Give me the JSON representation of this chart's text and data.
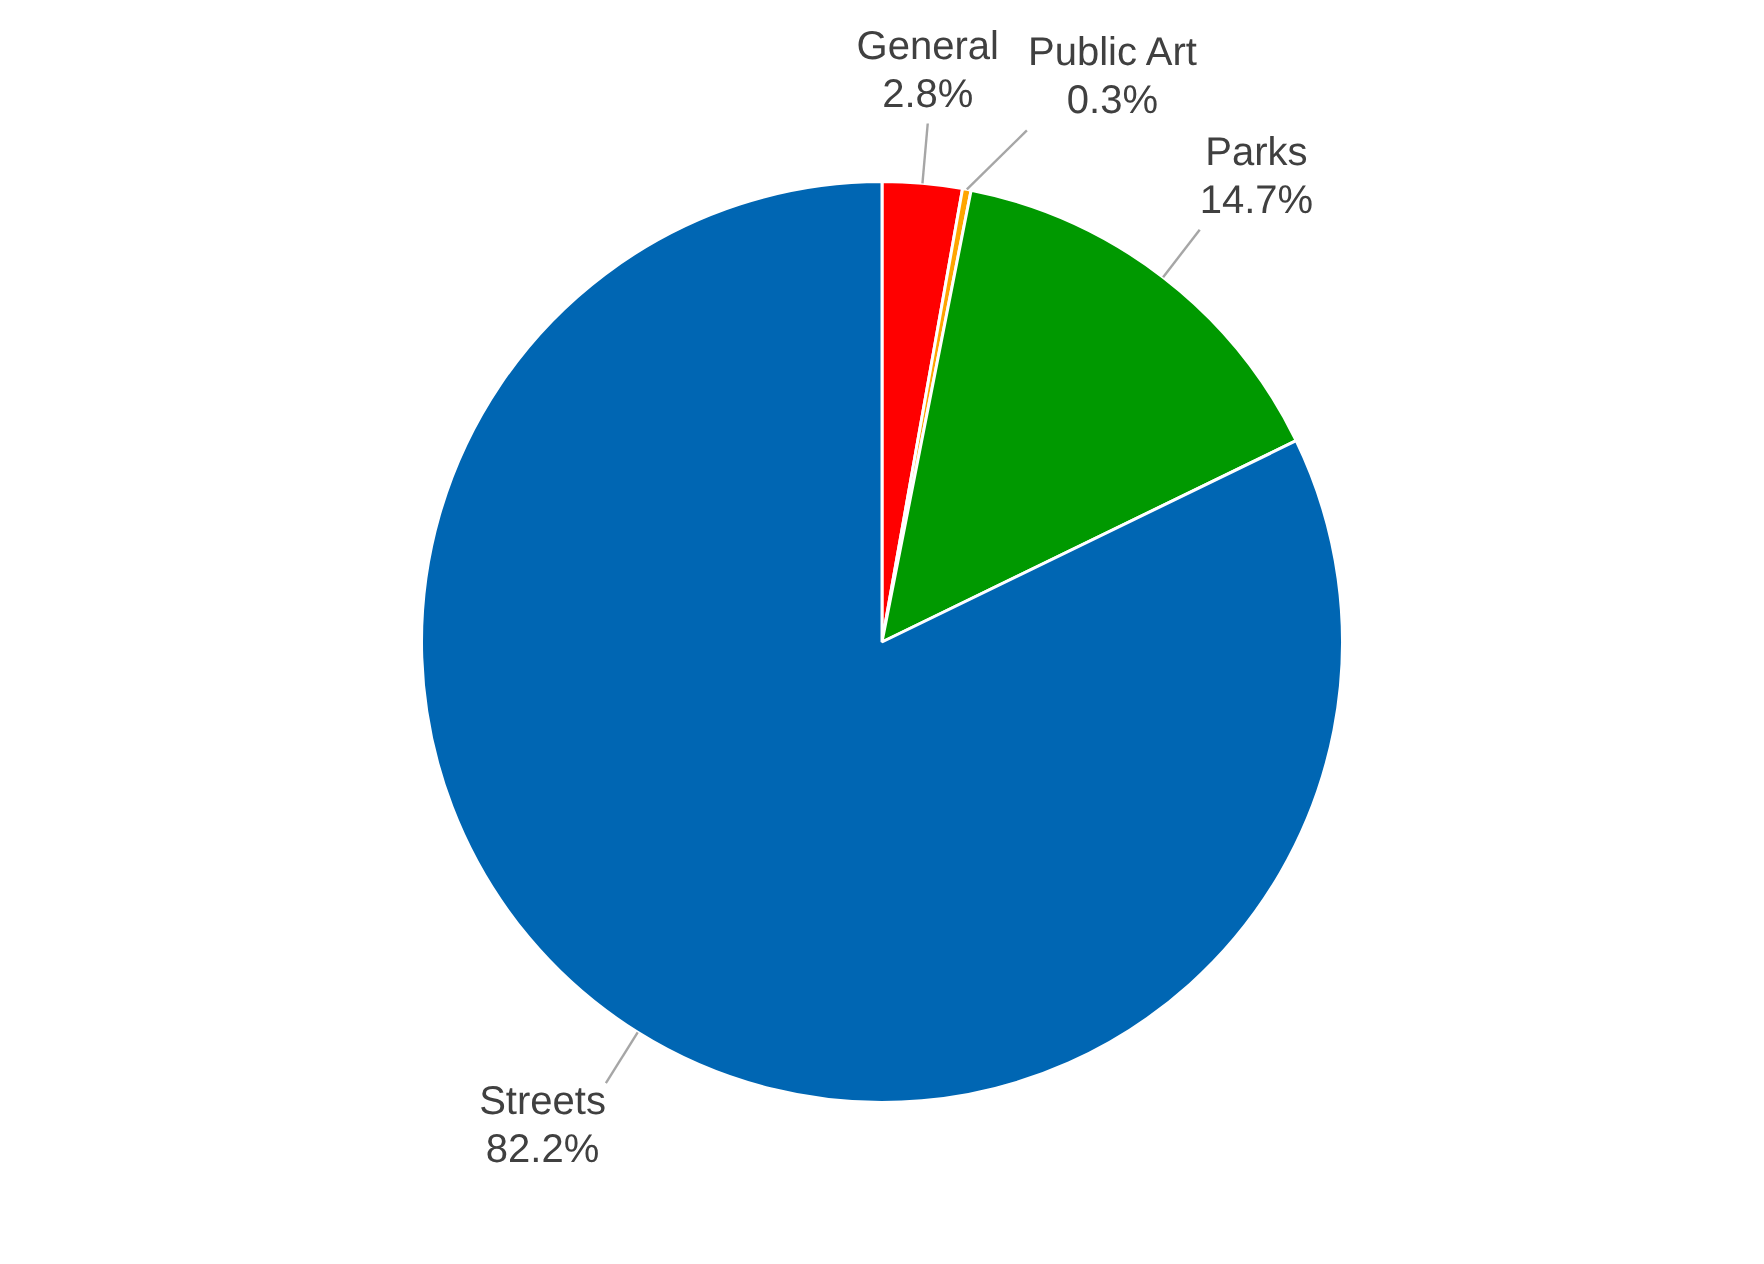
{
  "chart_data": {
    "type": "pie",
    "categories": [
      "General",
      "Public Art",
      "Parks",
      "Streets"
    ],
    "values": [
      2.8,
      0.3,
      14.7,
      82.2
    ],
    "colors": [
      "#ff0000",
      "#ffa500",
      "#009900",
      "#0066b3"
    ],
    "value_labels": [
      "2.8%",
      "0.3%",
      "14.7%",
      "82.2%"
    ],
    "legend": false
  }
}
